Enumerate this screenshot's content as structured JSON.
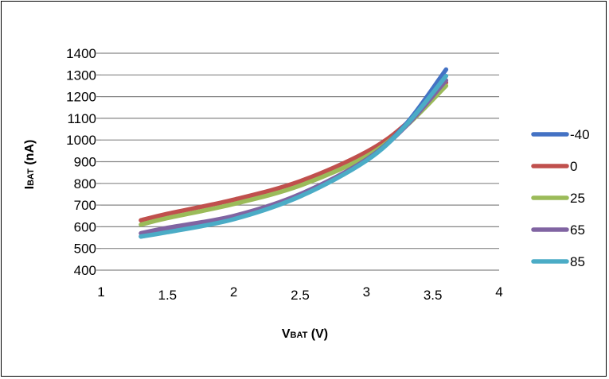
{
  "chart_data": {
    "type": "line",
    "xlabel": {
      "main": "V",
      "sub": "BAT",
      "unit": " (V)"
    },
    "ylabel": {
      "main": "I",
      "sub": "BAT",
      "unit": " (nA)"
    },
    "xlim": [
      1,
      4
    ],
    "ylim": [
      400,
      1400
    ],
    "xticks": [
      {
        "value": 1,
        "label": "1"
      },
      {
        "value": 1.5,
        "label": "1.5"
      },
      {
        "value": 2,
        "label": "2"
      },
      {
        "value": 2.5,
        "label": "2.5"
      },
      {
        "value": 3,
        "label": "3"
      },
      {
        "value": 3.5,
        "label": "3.5"
      },
      {
        "value": 4,
        "label": "4"
      }
    ],
    "yticks": [
      400,
      500,
      600,
      700,
      800,
      900,
      1000,
      1100,
      1200,
      1300,
      1400
    ],
    "grid": "horizontal",
    "legend_position": "right",
    "x": [
      1.3,
      1.5,
      2.0,
      2.5,
      3.0,
      3.3,
      3.6
    ],
    "series": [
      {
        "name": "-40",
        "color": "#4472C4",
        "values": [
          555,
          580,
          640,
          750,
          910,
          1075,
          1325
        ]
      },
      {
        "name": "0",
        "color": "#C0504D",
        "values": [
          630,
          660,
          725,
          810,
          945,
          1075,
          1265
        ]
      },
      {
        "name": "25",
        "color": "#9BBB59",
        "values": [
          610,
          640,
          705,
          790,
          925,
          1065,
          1250
        ]
      },
      {
        "name": "65",
        "color": "#8064A2",
        "values": [
          570,
          595,
          650,
          750,
          910,
          1065,
          1275
        ]
      },
      {
        "name": "85",
        "color": "#4BACC6",
        "values": [
          555,
          575,
          635,
          740,
          905,
          1070,
          1295
        ]
      }
    ]
  }
}
